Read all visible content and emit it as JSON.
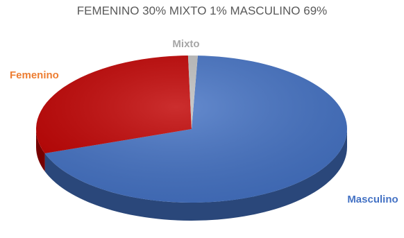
{
  "chart_data": {
    "type": "pie",
    "title": "FEMENINO 30% MIXTO 1% MASCULINO 69%",
    "slices": [
      {
        "label": "Masculino",
        "value": 69,
        "color": "#4472C4"
      },
      {
        "label": "Femenino",
        "value": 30,
        "color": "#C00000"
      },
      {
        "label": "Mixto",
        "value": 1,
        "color": "#BFBFBF"
      }
    ],
    "label_colors": {
      "Masculino": "#4472C4",
      "Femenino": "#ED7D31",
      "Mixto": "#A6A6A6"
    },
    "style": "3d"
  }
}
